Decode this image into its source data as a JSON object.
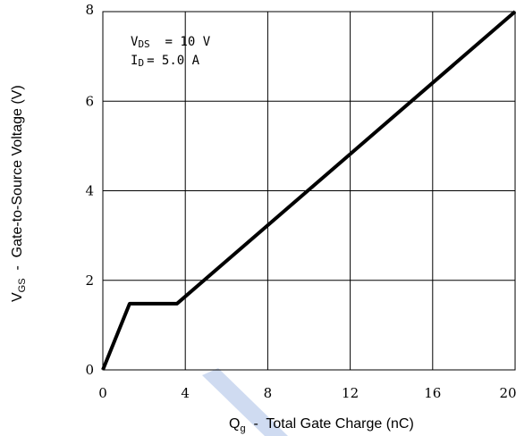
{
  "chart_data": {
    "type": "line",
    "x_ticks": [
      "0",
      "4",
      "8",
      "12",
      "16",
      "20"
    ],
    "y_ticks": [
      "0",
      "2",
      "4",
      "6",
      "8"
    ],
    "xlim": [
      0,
      20
    ],
    "ylim": [
      0,
      8
    ],
    "grid": true,
    "xlabel": {
      "main": "Q",
      "sub": "g",
      "rest": "  -  Total Gate Charge (nC)"
    },
    "ylabel": {
      "main": "V",
      "sub": "GS",
      "rest": "  -  Gate-to-Source Voltage (V)"
    },
    "annotations": [
      {
        "main": "V",
        "sub": "DS",
        "rest": "  = 10 V"
      },
      {
        "main": "I",
        "sub": "D",
        "rest": "= 5.0 A"
      }
    ],
    "series": [
      {
        "x": [
          0,
          1.3,
          3.6,
          20
        ],
        "y": [
          0,
          1.48,
          1.48,
          8.0
        ]
      }
    ],
    "colors": {
      "line": "#000000",
      "grid": "#000000",
      "watermark": "#c7d5ef"
    }
  }
}
